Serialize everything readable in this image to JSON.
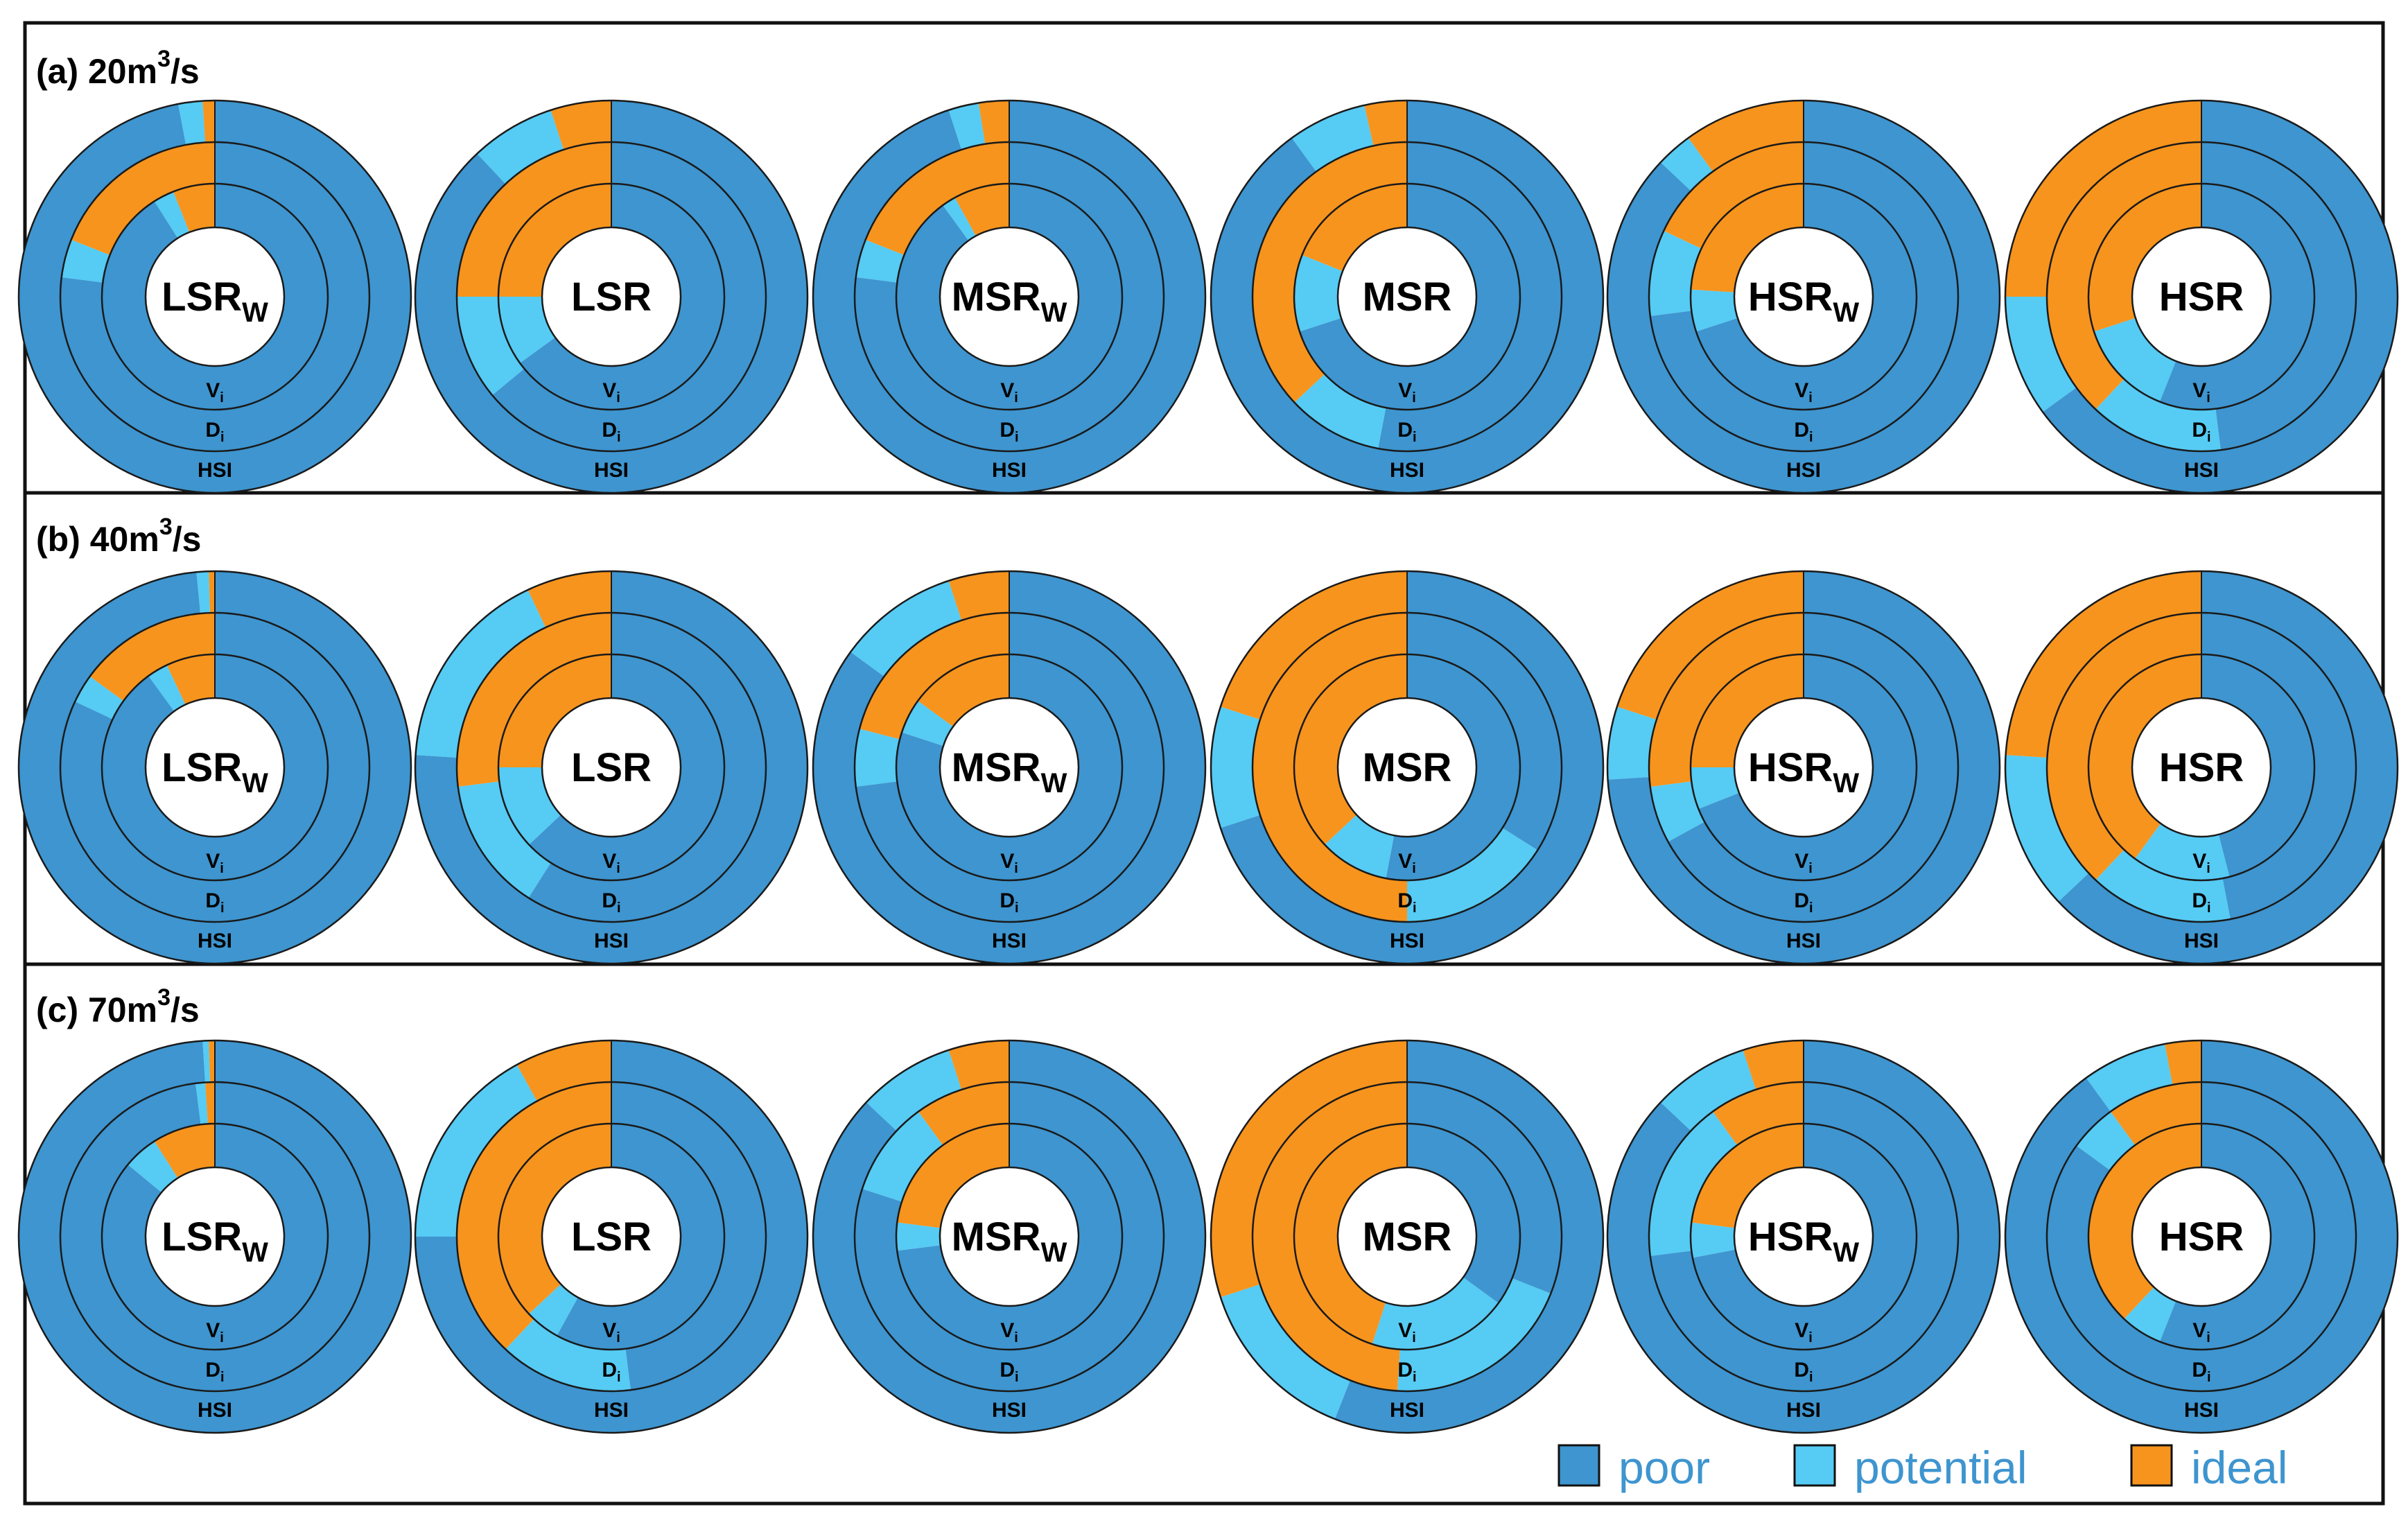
{
  "colors": {
    "poor": "#3E95CF",
    "potential": "#56CBF4",
    "ideal": "#F7941D"
  },
  "legend": [
    {
      "key": "poor",
      "label": "poor"
    },
    {
      "key": "potential",
      "label": "potential"
    },
    {
      "key": "ideal",
      "label": "ideal"
    }
  ],
  "ring_labels": [
    {
      "main": "V",
      "sub": "i"
    },
    {
      "main": "D",
      "sub": "i"
    },
    {
      "main": "HSI",
      "sub": ""
    }
  ],
  "chart_data": {
    "type": "donut",
    "note": "Three concentric rings per chart: inner = Vi, middle = Di, outer = HSI. Shares given as fraction of circle for ideal / potential / poor (poor = remainder), drawn counter-clockwise from 12 o'clock: ideal, then potential, then poor.",
    "panels": [
      {
        "title_prefix": "(a) 20m",
        "title_sup": "3",
        "title_suffix": "/s",
        "charts": [
          {
            "label": "LSR",
            "sub": "W",
            "rings": {
              "Vi": {
                "ideal": 0.06,
                "potential": 0.03
              },
              "Di": {
                "ideal": 0.19,
                "potential": 0.04
              },
              "HSI": {
                "ideal": 0.01,
                "potential": 0.02
              }
            }
          },
          {
            "label": "LSR",
            "sub": "",
            "rings": {
              "Vi": {
                "ideal": 0.25,
                "potential": 0.1
              },
              "Di": {
                "ideal": 0.25,
                "potential": 0.11
              },
              "HSI": {
                "ideal": 0.05,
                "potential": 0.07
              }
            }
          },
          {
            "label": "MSR",
            "sub": "W",
            "rings": {
              "Vi": {
                "ideal": 0.08,
                "potential": 0.02
              },
              "Di": {
                "ideal": 0.19,
                "potential": 0.04
              },
              "HSI": {
                "ideal": 0.025,
                "potential": 0.025
              }
            }
          },
          {
            "label": "MSR",
            "sub": "",
            "rings": {
              "Vi": {
                "ideal": 0.19,
                "potential": 0.11
              },
              "Di": {
                "ideal": 0.37,
                "potential": 0.1
              },
              "HSI": {
                "ideal": 0.035,
                "potential": 0.065
              }
            }
          },
          {
            "label": "HSR",
            "sub": "W",
            "rings": {
              "Vi": {
                "ideal": 0.24,
                "potential": 0.06
              },
              "Di": {
                "ideal": 0.18,
                "potential": 0.09
              },
              "HSI": {
                "ideal": 0.1,
                "potential": 0.03
              }
            }
          },
          {
            "label": "HSR",
            "sub": "",
            "rings": {
              "Vi": {
                "ideal": 0.3,
                "potential": 0.14
              },
              "Di": {
                "ideal": 0.38,
                "potential": 0.14
              },
              "HSI": {
                "ideal": 0.25,
                "potential": 0.1
              }
            }
          }
        ]
      },
      {
        "title_prefix": "(b) 40m",
        "title_sup": "3",
        "title_suffix": "/s",
        "charts": [
          {
            "label": "LSR",
            "sub": "W",
            "rings": {
              "Vi": {
                "ideal": 0.07,
                "potential": 0.03
              },
              "Di": {
                "ideal": 0.15,
                "potential": 0.03
              },
              "HSI": {
                "ideal": 0.005,
                "potential": 0.01
              }
            }
          },
          {
            "label": "LSR",
            "sub": "",
            "rings": {
              "Vi": {
                "ideal": 0.25,
                "potential": 0.12
              },
              "Di": {
                "ideal": 0.27,
                "potential": 0.14
              },
              "HSI": {
                "ideal": 0.07,
                "potential": 0.17
              }
            }
          },
          {
            "label": "MSR",
            "sub": "W",
            "rings": {
              "Vi": {
                "ideal": 0.15,
                "potential": 0.05
              },
              "Di": {
                "ideal": 0.21,
                "potential": 0.06
              },
              "HSI": {
                "ideal": 0.05,
                "potential": 0.1
              }
            }
          },
          {
            "label": "MSR",
            "sub": "",
            "rings": {
              "Vi": {
                "ideal": 0.37,
                "potential": 0.1
              },
              "Di": {
                "ideal": 0.5,
                "potential": 0.16
              },
              "HSI": {
                "ideal": 0.2,
                "potential": 0.1
              }
            }
          },
          {
            "label": "HSR",
            "sub": "W",
            "rings": {
              "Vi": {
                "ideal": 0.25,
                "potential": 0.06
              },
              "Di": {
                "ideal": 0.27,
                "potential": 0.06
              },
              "HSI": {
                "ideal": 0.2,
                "potential": 0.06
              }
            }
          },
          {
            "label": "HSR",
            "sub": "",
            "rings": {
              "Vi": {
                "ideal": 0.4,
                "potential": 0.14
              },
              "Di": {
                "ideal": 0.38,
                "potential": 0.15
              },
              "HSI": {
                "ideal": 0.24,
                "potential": 0.13
              }
            }
          }
        ]
      },
      {
        "title_prefix": "(c) 70m",
        "title_sup": "3",
        "title_suffix": "/s",
        "charts": [
          {
            "label": "LSR",
            "sub": "W",
            "rings": {
              "Vi": {
                "ideal": 0.09,
                "potential": 0.05
              },
              "Di": {
                "ideal": 0.01,
                "potential": 0.01
              },
              "HSI": {
                "ideal": 0.005,
                "potential": 0.005
              }
            }
          },
          {
            "label": "LSR",
            "sub": "",
            "rings": {
              "Vi": {
                "ideal": 0.37,
                "potential": 0.05
              },
              "Di": {
                "ideal": 0.38,
                "potential": 0.14
              },
              "HSI": {
                "ideal": 0.08,
                "potential": 0.17
              }
            }
          },
          {
            "label": "MSR",
            "sub": "W",
            "rings": {
              "Vi": {
                "ideal": 0.23,
                "potential": 0.04
              },
              "Di": {
                "ideal": 0.1,
                "potential": 0.1
              },
              "HSI": {
                "ideal": 0.05,
                "potential": 0.08
              }
            }
          },
          {
            "label": "MSR",
            "sub": "",
            "rings": {
              "Vi": {
                "ideal": 0.45,
                "potential": 0.2
              },
              "Di": {
                "ideal": 0.49,
                "potential": 0.2
              },
              "HSI": {
                "ideal": 0.3,
                "potential": 0.14
              }
            }
          },
          {
            "label": "HSR",
            "sub": "W",
            "rings": {
              "Vi": {
                "ideal": 0.23,
                "potential": 0.05
              },
              "Di": {
                "ideal": 0.1,
                "potential": 0.17
              },
              "HSI": {
                "ideal": 0.05,
                "potential": 0.08
              }
            }
          },
          {
            "label": "HSR",
            "sub": "",
            "rings": {
              "Vi": {
                "ideal": 0.38,
                "potential": 0.06
              },
              "Di": {
                "ideal": 0.1,
                "potential": 0.05
              },
              "HSI": {
                "ideal": 0.03,
                "potential": 0.07
              }
            }
          }
        ]
      }
    ]
  }
}
